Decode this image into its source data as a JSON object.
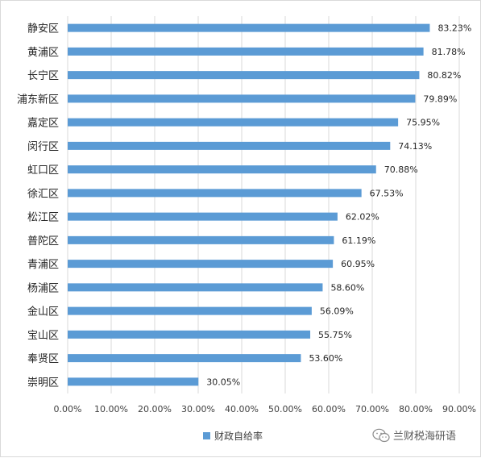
{
  "chart_data": {
    "type": "bar",
    "orientation": "horizontal",
    "categories": [
      "静安区",
      "黄浦区",
      "长宁区",
      "浦东新区",
      "嘉定区",
      "闵行区",
      "虹口区",
      "徐汇区",
      "松江区",
      "普陀区",
      "青浦区",
      "杨浦区",
      "金山区",
      "宝山区",
      "奉贤区",
      "崇明区"
    ],
    "series": [
      {
        "name": "财政自给率",
        "values": [
          83.23,
          81.78,
          80.82,
          79.89,
          75.95,
          74.13,
          70.88,
          67.53,
          62.02,
          61.19,
          60.95,
          58.6,
          56.09,
          55.75,
          53.6,
          30.05
        ],
        "labels": [
          "83.23%",
          "81.78%",
          "80.82%",
          "79.89%",
          "75.95%",
          "74.13%",
          "70.88%",
          "67.53%",
          "62.02%",
          "61.19%",
          "60.95%",
          "58.60%",
          "56.09%",
          "55.75%",
          "53.60%",
          "30.05%"
        ]
      }
    ],
    "x_ticks": [
      "0.00%",
      "10.00%",
      "20.00%",
      "30.00%",
      "40.00%",
      "50.00%",
      "60.00%",
      "70.00%",
      "80.00%",
      "90.00%"
    ],
    "xlim": [
      0,
      90
    ],
    "grid": "vertical",
    "legend_position": "bottom",
    "bar_color": "#5b9bd5",
    "grid_color": "#d9d9d9"
  },
  "legend": {
    "label": "财政自给率"
  },
  "watermark": {
    "text": "兰财税海研语",
    "icon": "wechat-icon"
  }
}
